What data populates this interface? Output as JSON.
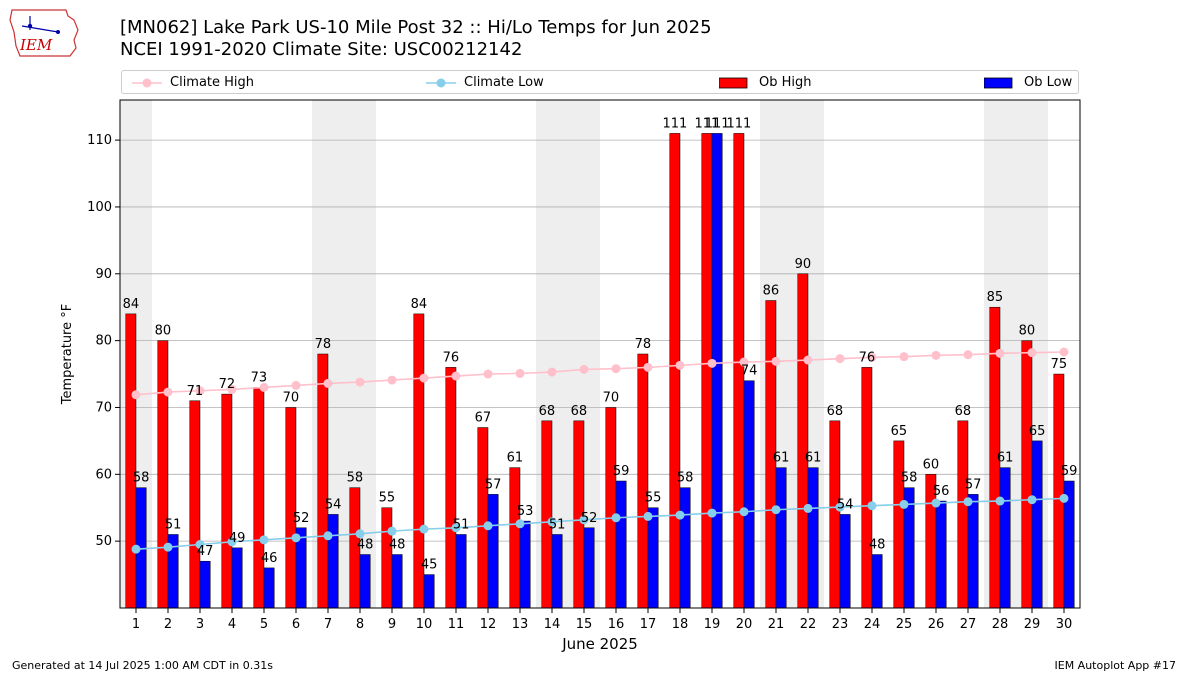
{
  "header": {
    "title_line1": "[MN062] Lake Park US-10 Mile Post 32 :: Hi/Lo Temps for Jun 2025",
    "title_line2": "NCEI 1991-2020 Climate Site: USC00212142"
  },
  "logo": {
    "text": "IEM",
    "icon": "iem-iowa-logo"
  },
  "footer": {
    "generated": "Generated at 14 Jul 2025 1:00 AM CDT in 0.31s",
    "app": "IEM Autoplot App #17"
  },
  "colors": {
    "ob_high": "#ff0000",
    "ob_low": "#0000ff",
    "climate_high": "#ffc0cb",
    "climate_low": "#87ceeb",
    "weekend_shade": "#eeeeee",
    "grid": "#b0b0b0"
  },
  "chart_data": {
    "type": "bar",
    "xlabel": "June 2025",
    "ylabel": "Temperature °F",
    "ylim": [
      40,
      116
    ],
    "yticks": [
      50,
      60,
      70,
      80,
      90,
      100,
      110
    ],
    "grid": "horizontal",
    "legend_position": "top",
    "categories": [
      "1",
      "2",
      "3",
      "4",
      "5",
      "6",
      "7",
      "8",
      "9",
      "10",
      "11",
      "12",
      "13",
      "14",
      "15",
      "16",
      "17",
      "18",
      "19",
      "20",
      "21",
      "22",
      "23",
      "24",
      "25",
      "26",
      "27",
      "28",
      "29",
      "30"
    ],
    "shaded_days": [
      1,
      7,
      8,
      14,
      15,
      21,
      22,
      28,
      29
    ],
    "series": [
      {
        "name": "Ob High",
        "kind": "bar",
        "values": [
          84,
          80,
          71,
          72,
          73,
          70,
          78,
          58,
          55,
          84,
          76,
          67,
          61,
          68,
          68,
          70,
          78,
          111,
          111,
          111,
          86,
          90,
          68,
          76,
          65,
          60,
          68,
          85,
          80,
          75
        ]
      },
      {
        "name": "Ob Low",
        "kind": "bar",
        "values": [
          58,
          51,
          47,
          49,
          46,
          52,
          54,
          48,
          48,
          45,
          51,
          57,
          53,
          51,
          52,
          59,
          55,
          58,
          111,
          74,
          61,
          61,
          54,
          48,
          58,
          56,
          57,
          61,
          65,
          59
        ]
      },
      {
        "name": "Climate High",
        "kind": "line",
        "values": [
          71.9,
          72.3,
          72.5,
          72.7,
          73.0,
          73.3,
          73.6,
          73.8,
          74.1,
          74.4,
          74.7,
          75.0,
          75.1,
          75.3,
          75.7,
          75.8,
          76.0,
          76.3,
          76.6,
          76.8,
          76.9,
          77.1,
          77.3,
          77.5,
          77.6,
          77.8,
          77.9,
          78.1,
          78.2,
          78.3
        ]
      },
      {
        "name": "Climate Low",
        "kind": "line",
        "values": [
          48.8,
          49.1,
          49.5,
          49.9,
          50.2,
          50.5,
          50.8,
          51.1,
          51.5,
          51.8,
          52.0,
          52.3,
          52.6,
          52.9,
          53.2,
          53.5,
          53.7,
          53.9,
          54.2,
          54.4,
          54.7,
          54.9,
          55.1,
          55.3,
          55.5,
          55.7,
          55.9,
          56.0,
          56.2,
          56.4
        ]
      }
    ]
  }
}
